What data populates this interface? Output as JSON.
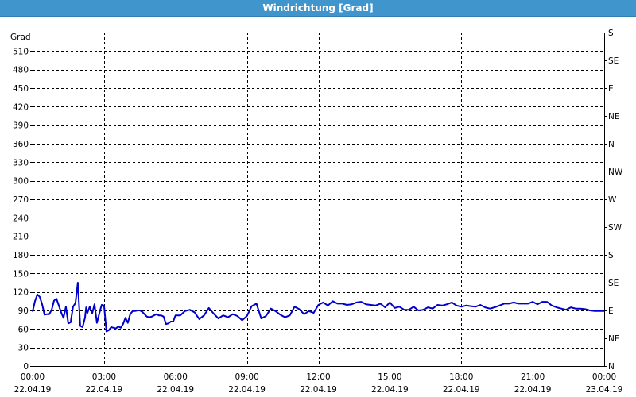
{
  "window": {
    "title": "Windrichtung [Grad]"
  },
  "chart_data": {
    "type": "line",
    "ylabel": "Grad",
    "ylim": [
      0,
      540
    ],
    "yticks": [
      0,
      30,
      60,
      90,
      120,
      150,
      180,
      210,
      240,
      270,
      300,
      330,
      360,
      390,
      420,
      450,
      480,
      510
    ],
    "y2ticks": [
      {
        "value": 0,
        "label": "N"
      },
      {
        "value": 45,
        "label": "NE"
      },
      {
        "value": 90,
        "label": "E"
      },
      {
        "value": 135,
        "label": "SE"
      },
      {
        "value": 180,
        "label": "S"
      },
      {
        "value": 225,
        "label": "SW"
      },
      {
        "value": 270,
        "label": "W"
      },
      {
        "value": 315,
        "label": "NW"
      },
      {
        "value": 360,
        "label": "N"
      },
      {
        "value": 405,
        "label": "NE"
      },
      {
        "value": 450,
        "label": "E"
      },
      {
        "value": 495,
        "label": "SE"
      },
      {
        "value": 540,
        "label": "S"
      }
    ],
    "xlim": [
      0,
      24
    ],
    "xticks": [
      {
        "hour": 0,
        "time": "00:00",
        "date": "22.04.19"
      },
      {
        "hour": 3,
        "time": "03:00",
        "date": "22.04.19"
      },
      {
        "hour": 6,
        "time": "06:00",
        "date": "22.04.19"
      },
      {
        "hour": 9,
        "time": "09:00",
        "date": "22.04.19"
      },
      {
        "hour": 12,
        "time": "12:00",
        "date": "22.04.19"
      },
      {
        "hour": 15,
        "time": "15:00",
        "date": "22.04.19"
      },
      {
        "hour": 18,
        "time": "18:00",
        "date": "22.04.19"
      },
      {
        "hour": 21,
        "time": "21:00",
        "date": "22.04.19"
      },
      {
        "hour": 24,
        "time": "00:00",
        "date": "23.04.19"
      }
    ],
    "grid": true,
    "line_color": "#0000cc",
    "series": [
      {
        "x": [
          0.0,
          0.1,
          0.2,
          0.3,
          0.4,
          0.5,
          0.6,
          0.7,
          0.8,
          0.9,
          1.0,
          1.1,
          1.2,
          1.3,
          1.4,
          1.5,
          1.6,
          1.7,
          1.8,
          1.9,
          2.0,
          2.1,
          2.2,
          2.25,
          2.3,
          2.4,
          2.5,
          2.6,
          2.7,
          2.8,
          2.9,
          3.0,
          3.1,
          3.2,
          3.3,
          3.4,
          3.5,
          3.6,
          3.7,
          3.8,
          3.9,
          4.0,
          4.1,
          4.2,
          4.3,
          4.4,
          4.5,
          4.6,
          4.7,
          4.8,
          4.9,
          5.0,
          5.1,
          5.2,
          5.3,
          5.4,
          5.5,
          5.6,
          5.7,
          5.8,
          5.9,
          6.0,
          6.2,
          6.4,
          6.6,
          6.8,
          7.0,
          7.2,
          7.4,
          7.6,
          7.8,
          8.0,
          8.2,
          8.4,
          8.6,
          8.8,
          9.0,
          9.2,
          9.4,
          9.6,
          9.8,
          10.0,
          10.2,
          10.4,
          10.6,
          10.8,
          11.0,
          11.2,
          11.4,
          11.6,
          11.8,
          12.0,
          12.2,
          12.4,
          12.6,
          12.8,
          13.0,
          13.2,
          13.4,
          13.6,
          13.8,
          14.0,
          14.2,
          14.4,
          14.6,
          14.8,
          15.0,
          15.2,
          15.4,
          15.6,
          15.8,
          16.0,
          16.2,
          16.4,
          16.6,
          16.8,
          17.0,
          17.2,
          17.4,
          17.6,
          17.8,
          18.0,
          18.2,
          18.4,
          18.6,
          18.8,
          19.0,
          19.2,
          19.4,
          19.6,
          19.8,
          20.0,
          20.2,
          20.4,
          20.6,
          20.8,
          21.0,
          21.2,
          21.4,
          21.6,
          21.8,
          22.0,
          22.2,
          22.4,
          22.6,
          22.8,
          23.0,
          23.2,
          23.4,
          23.6,
          23.8,
          24.0
        ],
        "y": [
          88,
          105,
          116,
          112,
          100,
          83,
          84,
          84,
          91,
          106,
          109,
          98,
          87,
          78,
          96,
          69,
          71,
          96,
          102,
          135,
          65,
          63,
          78,
          95,
          86,
          96,
          85,
          100,
          70,
          85,
          99,
          98,
          56,
          58,
          63,
          62,
          61,
          64,
          62,
          68,
          78,
          70,
          84,
          89,
          89,
          90,
          90,
          88,
          84,
          80,
          79,
          80,
          82,
          84,
          82,
          82,
          80,
          68,
          69,
          72,
          72,
          82,
          82,
          89,
          91,
          87,
          76,
          82,
          94,
          85,
          77,
          82,
          79,
          84,
          81,
          74,
          81,
          97,
          101,
          77,
          81,
          93,
          89,
          83,
          79,
          82,
          96,
          92,
          84,
          89,
          86,
          99,
          103,
          98,
          105,
          101,
          101,
          99,
          100,
          103,
          104,
          100,
          99,
          98,
          101,
          95,
          103,
          94,
          96,
          91,
          91,
          96,
          90,
          91,
          95,
          93,
          99,
          98,
          100,
          103,
          98,
          96,
          98,
          97,
          96,
          99,
          95,
          93,
          95,
          98,
          101,
          101,
          103,
          101,
          101,
          101,
          104,
          100,
          104,
          104,
          98,
          95,
          93,
          91,
          95,
          93,
          93,
          92,
          90,
          89,
          89,
          89
        ]
      }
    ]
  }
}
